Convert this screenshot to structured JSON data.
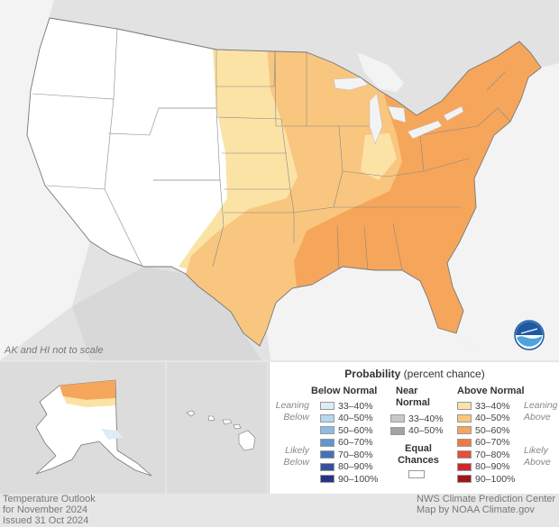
{
  "map": {
    "note": "AK and HI not to scale"
  },
  "legend": {
    "title_bold": "Probability",
    "title_rest": " (percent chance)",
    "below": {
      "heading": "Below Normal",
      "leaning": "Leaning Below",
      "likely": "Likely Below",
      "rows": [
        {
          "label": "33–40%",
          "color": "#dcedf8"
        },
        {
          "label": "40–50%",
          "color": "#b6d7ee"
        },
        {
          "label": "50–60%",
          "color": "#8dbce2"
        },
        {
          "label": "60–70%",
          "color": "#5f96cf"
        },
        {
          "label": "70–80%",
          "color": "#4571b8"
        },
        {
          "label": "80–90%",
          "color": "#36509f"
        },
        {
          "label": "90–100%",
          "color": "#283287"
        }
      ]
    },
    "near": {
      "heading": "Near Normal",
      "rows": [
        {
          "label": "33–40%",
          "color": "#c8c8c8"
        },
        {
          "label": "40–50%",
          "color": "#a3a3a3"
        }
      ],
      "equal": "Equal Chances",
      "equal_color": "#ffffff"
    },
    "above": {
      "heading": "Above Normal",
      "leaning": "Leaning Above",
      "likely": "Likely Above",
      "rows": [
        {
          "label": "33–40%",
          "color": "#fbe3a6"
        },
        {
          "label": "40–50%",
          "color": "#f9c67f"
        },
        {
          "label": "50–60%",
          "color": "#f6a65b"
        },
        {
          "label": "60–70%",
          "color": "#f07a45"
        },
        {
          "label": "70–80%",
          "color": "#e4503a"
        },
        {
          "label": "80–90%",
          "color": "#cc2a2a"
        },
        {
          "label": "90–100%",
          "color": "#a3131e"
        }
      ]
    }
  },
  "footer": {
    "left": [
      "Temperature Outlook",
      "for November 2024",
      "Issued 31 Oct 2024"
    ],
    "right": [
      "NWS Climate Prediction Center",
      "Map by NOAA Climate.gov"
    ]
  },
  "colors": {
    "background": "#e6e6e6",
    "lean": "#fbe3a6",
    "p40": "#f9c67f",
    "p50": "#f6a65b",
    "ec": "#ffffff"
  }
}
